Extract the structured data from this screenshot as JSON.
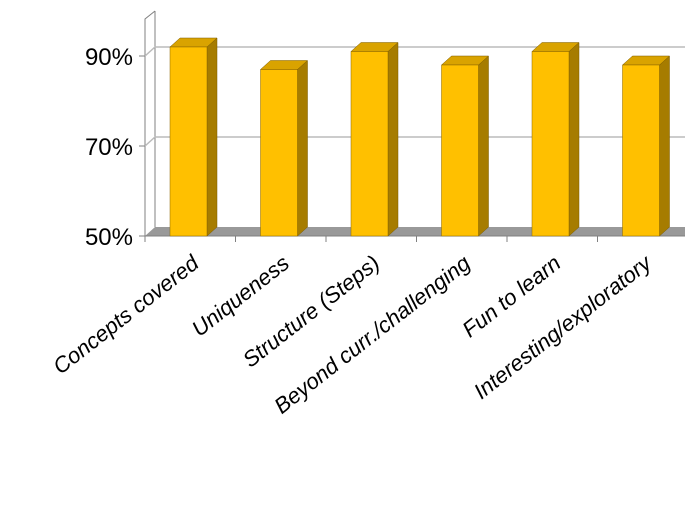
{
  "chart_data": {
    "type": "bar",
    "title": "",
    "xlabel": "",
    "ylabel": "",
    "categories": [
      "Concepts covered",
      "Uniqueness",
      "Structure (Steps)",
      "Beyond curr./challenging",
      "Fun to learn",
      "Interesting/exploratory"
    ],
    "values": [
      92,
      87,
      91,
      88,
      91,
      88
    ],
    "ylim": [
      50,
      100
    ],
    "yticks": [
      {
        "value": 50,
        "label": "50%"
      },
      {
        "value": 70,
        "label": "70%"
      },
      {
        "value": 90,
        "label": "90%"
      }
    ],
    "grid": true,
    "three_d": true,
    "colors": {
      "bar_front": "#FFC000",
      "bar_side": "#A67C00",
      "bar_top": "#D9A300",
      "floor": "#999999",
      "grid": "#BBBBBB",
      "axis": "#808080"
    }
  }
}
